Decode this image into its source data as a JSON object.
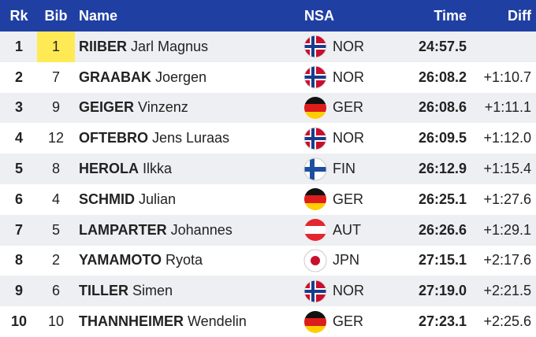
{
  "header": {
    "rank": "Rk",
    "bib": "Bib",
    "name": "Name",
    "nsa": "NSA",
    "time": "Time",
    "diff": "Diff"
  },
  "table": {
    "rows": [
      {
        "rank": 1,
        "bib": 1,
        "surname": "RIIBER",
        "firstname": "Jarl Magnus",
        "nsa": "NOR",
        "time": "24:57.5"
      },
      {
        "rank": 2,
        "bib": 7,
        "surname": "GRAABAK",
        "firstname": "Joergen",
        "nsa": "NOR",
        "time": "26:08.2",
        "diff": "+1:10.7"
      },
      {
        "rank": 3,
        "bib": 9,
        "surname": "GEIGER",
        "firstname": "Vinzenz",
        "nsa": "GER",
        "time": "26:08.6",
        "diff": "+1:11.1"
      },
      {
        "rank": 4,
        "bib": 12,
        "surname": "OFTEBRO",
        "firstname": "Jens Luraas",
        "nsa": "NOR",
        "time": "26:09.5",
        "diff": "+1:12.0"
      },
      {
        "rank": 5,
        "bib": 8,
        "surname": "HEROLA",
        "firstname": "Ilkka",
        "nsa": "FIN",
        "time": "26:12.9",
        "diff": "+1:15.4"
      },
      {
        "rank": 6,
        "bib": 4,
        "surname": "SCHMID",
        "firstname": "Julian",
        "nsa": "GER",
        "time": "26:25.1",
        "diff": "+1:27.6"
      },
      {
        "rank": 7,
        "bib": 5,
        "surname": "LAMPARTER",
        "firstname": "Johannes",
        "nsa": "AUT",
        "time": "26:26.6",
        "diff": "+1:29.1"
      },
      {
        "rank": 8,
        "bib": 2,
        "surname": "YAMAMOTO",
        "firstname": "Ryota",
        "nsa": "JPN",
        "time": "27:15.1",
        "diff": "+2:17.6"
      },
      {
        "rank": 9,
        "bib": 6,
        "surname": "TILLER",
        "firstname": "Simen",
        "nsa": "NOR",
        "time": "27:19.0",
        "diff": "+2:21.5"
      },
      {
        "rank": 10,
        "bib": 10,
        "surname": "THANNHEIMER",
        "firstname": "Wendelin",
        "nsa": "GER",
        "time": "27:23.1",
        "diff": "+2:25.6"
      }
    ]
  }
}
